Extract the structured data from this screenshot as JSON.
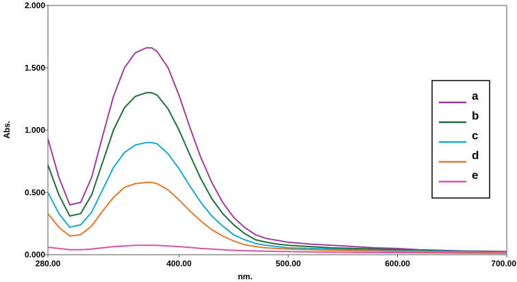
{
  "chart_data": {
    "type": "line",
    "title": "",
    "xlabel": "nm.",
    "ylabel": "Abs.",
    "xlim": [
      280,
      700
    ],
    "ylim": [
      0,
      2
    ],
    "grid": false,
    "legend_position": "right",
    "x_ticks": [
      "280.00",
      "400.00",
      "500.00",
      "600.00",
      "700.00"
    ],
    "y_ticks": [
      "0.000",
      "0.500",
      "1.000",
      "1.500",
      "2.000"
    ],
    "x": [
      280,
      290,
      300,
      310,
      320,
      330,
      340,
      350,
      360,
      370,
      375,
      380,
      390,
      400,
      410,
      420,
      430,
      440,
      450,
      460,
      470,
      480,
      490,
      500,
      520,
      540,
      560,
      580,
      600,
      620,
      640,
      660,
      680,
      700
    ],
    "series": [
      {
        "name": "a",
        "color": "#9b3d9b",
        "values": [
          0.93,
          0.62,
          0.4,
          0.42,
          0.62,
          0.95,
          1.27,
          1.5,
          1.62,
          1.66,
          1.66,
          1.63,
          1.5,
          1.28,
          1.02,
          0.78,
          0.58,
          0.42,
          0.3,
          0.22,
          0.16,
          0.13,
          0.115,
          0.1,
          0.085,
          0.075,
          0.065,
          0.055,
          0.05,
          0.04,
          0.035,
          0.03,
          0.028,
          0.025
        ]
      },
      {
        "name": "b",
        "color": "#1f6b3a",
        "values": [
          0.72,
          0.48,
          0.31,
          0.33,
          0.48,
          0.74,
          1.0,
          1.18,
          1.27,
          1.3,
          1.3,
          1.28,
          1.17,
          1.0,
          0.8,
          0.61,
          0.45,
          0.33,
          0.24,
          0.17,
          0.12,
          0.1,
          0.085,
          0.075,
          0.065,
          0.055,
          0.05,
          0.045,
          0.04,
          0.035,
          0.03,
          0.027,
          0.025,
          0.022
        ]
      },
      {
        "name": "c",
        "color": "#1aa7c9",
        "values": [
          0.5,
          0.33,
          0.22,
          0.24,
          0.34,
          0.52,
          0.7,
          0.82,
          0.88,
          0.9,
          0.9,
          0.89,
          0.81,
          0.69,
          0.55,
          0.42,
          0.31,
          0.23,
          0.16,
          0.12,
          0.09,
          0.075,
          0.065,
          0.055,
          0.05,
          0.045,
          0.04,
          0.035,
          0.032,
          0.03,
          0.027,
          0.025,
          0.022,
          0.02
        ]
      },
      {
        "name": "d",
        "color": "#e07a2e",
        "values": [
          0.33,
          0.22,
          0.15,
          0.16,
          0.23,
          0.35,
          0.46,
          0.54,
          0.57,
          0.58,
          0.58,
          0.57,
          0.52,
          0.44,
          0.35,
          0.27,
          0.2,
          0.15,
          0.11,
          0.08,
          0.065,
          0.055,
          0.05,
          0.045,
          0.04,
          0.035,
          0.032,
          0.03,
          0.027,
          0.025,
          0.022,
          0.02,
          0.018,
          0.015
        ]
      },
      {
        "name": "e",
        "color": "#d454a6",
        "values": [
          0.06,
          0.05,
          0.04,
          0.04,
          0.045,
          0.055,
          0.065,
          0.07,
          0.075,
          0.075,
          0.075,
          0.075,
          0.07,
          0.065,
          0.058,
          0.05,
          0.045,
          0.04,
          0.035,
          0.032,
          0.03,
          0.028,
          0.026,
          0.025,
          0.022,
          0.02,
          0.018,
          0.017,
          0.016,
          0.015,
          0.014,
          0.013,
          0.012,
          0.012
        ]
      }
    ]
  }
}
